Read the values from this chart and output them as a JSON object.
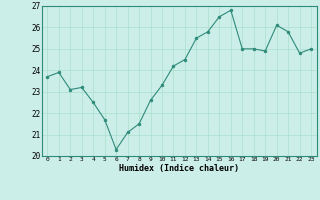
{
  "x": [
    0,
    1,
    2,
    3,
    4,
    5,
    6,
    7,
    8,
    9,
    10,
    11,
    12,
    13,
    14,
    15,
    16,
    17,
    18,
    19,
    20,
    21,
    22,
    23
  ],
  "y": [
    23.7,
    23.9,
    23.1,
    23.2,
    22.5,
    21.7,
    20.3,
    21.1,
    21.5,
    22.6,
    23.3,
    24.2,
    24.5,
    25.5,
    25.8,
    26.5,
    26.8,
    25.0,
    25.0,
    24.9,
    26.1,
    25.8,
    24.8,
    25.0
  ],
  "xlim": [
    -0.5,
    23.5
  ],
  "ylim": [
    20,
    27
  ],
  "yticks": [
    20,
    21,
    22,
    23,
    24,
    25,
    26,
    27
  ],
  "xticks": [
    0,
    1,
    2,
    3,
    4,
    5,
    6,
    7,
    8,
    9,
    10,
    11,
    12,
    13,
    14,
    15,
    16,
    17,
    18,
    19,
    20,
    21,
    22,
    23
  ],
  "xlabel": "Humidex (Indice chaleur)",
  "line_color": "#2e8b7a",
  "marker_color": "#2e8b7a",
  "bg_color": "#cceee8",
  "grid_color": "#aaddcc",
  "axis_color": "#2e8b7a",
  "fig_bg": "#cceee8"
}
